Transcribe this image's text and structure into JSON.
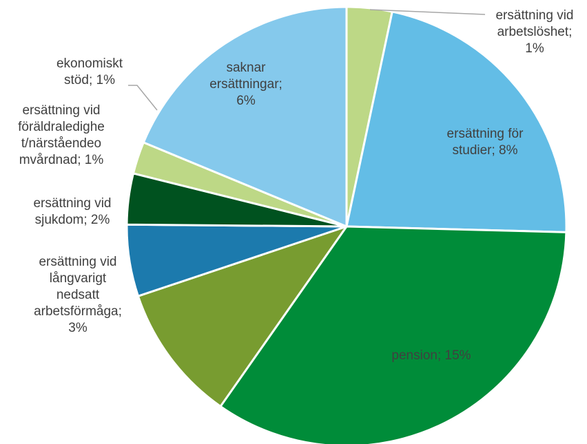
{
  "chart_data": {
    "type": "pie",
    "title": "",
    "slices": [
      {
        "label": "ersättning vid arbetslöshet",
        "value": 1,
        "percent_label": "1%",
        "color": "#bdd886"
      },
      {
        "label": "ersättning för studier",
        "value": 8,
        "percent_label": "8%",
        "color": "#63bde6"
      },
      {
        "label": "pension",
        "value": 15,
        "percent_label": "15%",
        "color": "#008c39"
      },
      {
        "label": "ersättning vid långvarigt nedsatt arbetsförmåga",
        "value": 3,
        "percent_label": "3%",
        "color": "#789c30"
      },
      {
        "label": "ersättning vid sjukdom",
        "value": 2,
        "percent_label": "2%",
        "color": "#1c7aad"
      },
      {
        "label": "ersättning vid föräldraledighet/närståendeomvårdnad",
        "value": 1,
        "percent_label": "1%",
        "color": "#00521f"
      },
      {
        "label": "ekonomiskt stöd",
        "value": 1,
        "percent_label": "1%",
        "color": "#bdd886"
      },
      {
        "label": "saknar ersättningar",
        "value": 6,
        "percent_label": "6%",
        "color": "#85c9ec"
      }
    ],
    "label_lines": {
      "0": [
        "ersättning vid",
        "arbetslöshet;",
        "1%"
      ],
      "1": [
        "ersättning för",
        "studier; 8%"
      ],
      "2": [
        "pension; 15%"
      ],
      "3": [
        "ersättning vid",
        "långvarigt",
        "nedsatt",
        "arbetsförmåga;",
        "3%"
      ],
      "4": [
        "ersättning vid",
        "sjukdom; 2%"
      ],
      "5": [
        "ersättning vid",
        "föräldraledighe",
        "t/närståendeo",
        "mvårdnad; 1%"
      ],
      "6": [
        "ekonomiskt",
        "stöd; 1%"
      ],
      "7": [
        "saknar",
        "ersättningar;",
        "6%"
      ]
    },
    "legend": "none"
  }
}
